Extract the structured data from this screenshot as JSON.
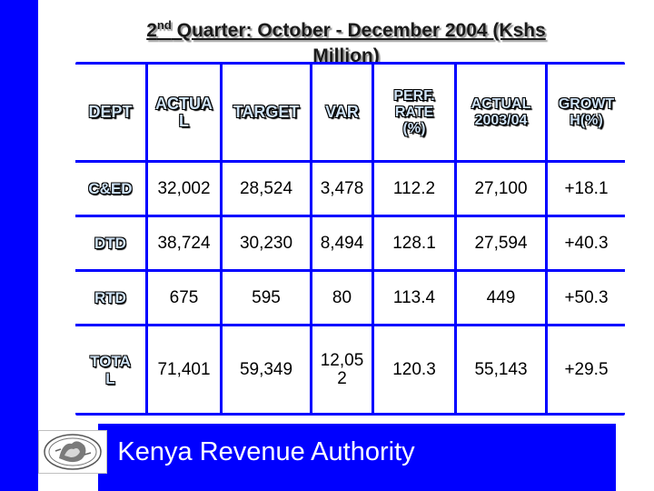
{
  "title": {
    "prefix": "2",
    "sup": "nd",
    "line1_rest": " Quarter: October - December 2004 (Kshs",
    "line2": "Million)"
  },
  "table": {
    "headers": [
      [
        "DEPT"
      ],
      [
        "ACTUA",
        "L"
      ],
      [
        "TARGET"
      ],
      [
        "VAR"
      ],
      [
        "PERF.",
        "RATE",
        "(%)"
      ],
      [
        "ACTUAL",
        "2003/04"
      ],
      [
        "GROWT",
        "H(%)"
      ]
    ],
    "rows": [
      {
        "dept": [
          "C&ED"
        ],
        "actual": "32,002",
        "target": "28,524",
        "var": [
          "3,478"
        ],
        "perf": "112.2",
        "actual_prev": "27,100",
        "growth": "+18.1"
      },
      {
        "dept": [
          "DTD"
        ],
        "actual": "38,724",
        "target": "30,230",
        "var": [
          "8,494"
        ],
        "perf": "128.1",
        "actual_prev": "27,594",
        "growth": "+40.3"
      },
      {
        "dept": [
          "RTD"
        ],
        "actual": "675",
        "target": "595",
        "var": [
          "80"
        ],
        "perf": "113.4",
        "actual_prev": "449",
        "growth": "+50.3"
      },
      {
        "dept": [
          "TOTA",
          "L"
        ],
        "actual": "71,401",
        "target": "59,349",
        "var": [
          "12,05",
          "2"
        ],
        "perf": "120.3",
        "actual_prev": "55,143",
        "growth": "+29.5"
      }
    ]
  },
  "footer": {
    "org": "Kenya Revenue Authority"
  },
  "colors": {
    "accent": "#0000ff",
    "header_text": "#cfe3f7",
    "cell_bg": "#ffffff"
  }
}
